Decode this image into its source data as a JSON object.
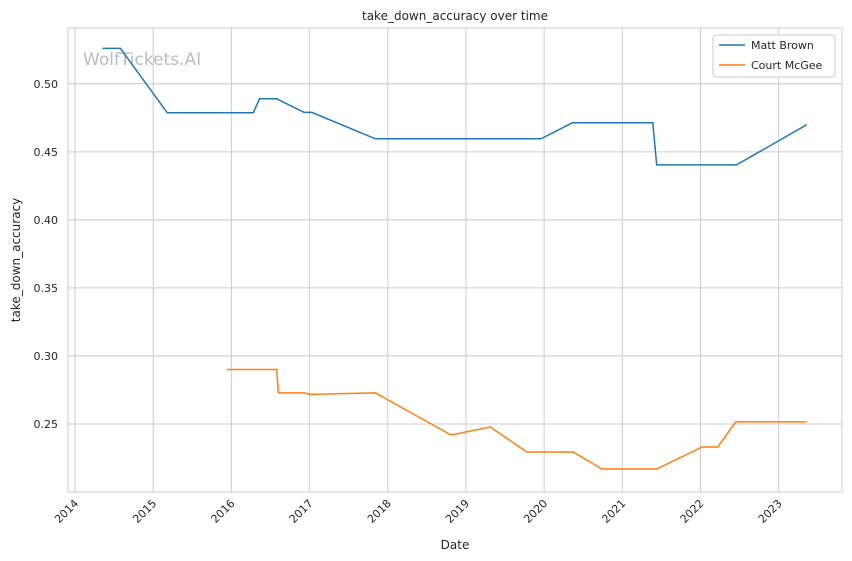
{
  "chart_data": {
    "type": "line",
    "title": "take_down_accuracy over time",
    "xlabel": "Date",
    "ylabel": "take_down_accuracy",
    "xlim": [
      2013.91,
      2023.81
    ],
    "ylim": [
      0.2,
      0.541
    ],
    "grid": true,
    "legend_position": "top-right",
    "watermark": "WolfTickets.AI",
    "x_ticks": [
      2014,
      2015,
      2016,
      2017,
      2018,
      2019,
      2020,
      2021,
      2022,
      2023
    ],
    "x_tick_labels": [
      "2014",
      "2015",
      "2016",
      "2017",
      "2018",
      "2019",
      "2020",
      "2021",
      "2022",
      "2023"
    ],
    "y_ticks": [
      0.25,
      0.3,
      0.35,
      0.4,
      0.45,
      0.5
    ],
    "y_tick_labels": [
      "0.25",
      "0.30",
      "0.35",
      "0.40",
      "0.45",
      "0.50"
    ],
    "series": [
      {
        "name": "Matt Brown",
        "color": "#1f77b4",
        "x": [
          2014.35,
          2014.58,
          2015.18,
          2016.28,
          2016.36,
          2016.58,
          2016.93,
          2017.03,
          2017.84,
          2019.96,
          2020.36,
          2021.39,
          2021.44,
          2022.46,
          2023.36
        ],
        "y": [
          0.526,
          0.526,
          0.4787,
          0.4787,
          0.489,
          0.489,
          0.479,
          0.479,
          0.4596,
          0.4596,
          0.4713,
          0.4713,
          0.4404,
          0.4404,
          0.4699
        ]
      },
      {
        "name": "Court McGee",
        "color": "#ff7f0e",
        "x": [
          2015.94,
          2016.58,
          2016.6,
          2016.94,
          2017.0,
          2017.84,
          2018.81,
          2019.31,
          2019.78,
          2020.37,
          2020.74,
          2021.44,
          2022.02,
          2022.22,
          2022.45,
          2023.36
        ],
        "y": [
          0.29,
          0.29,
          0.2728,
          0.2728,
          0.2717,
          0.2728,
          0.2419,
          0.2478,
          0.2294,
          0.2294,
          0.2169,
          0.2169,
          0.2331,
          0.2331,
          0.2515,
          0.2515
        ]
      }
    ]
  }
}
